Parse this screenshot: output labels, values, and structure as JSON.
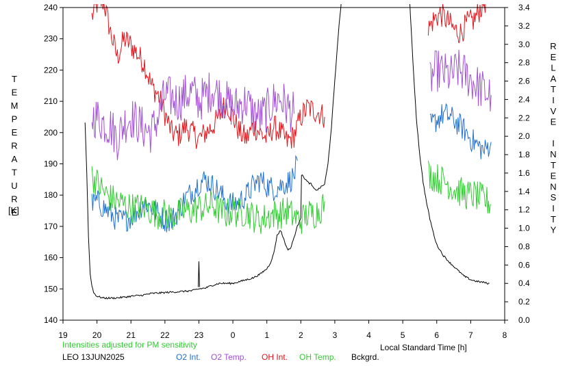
{
  "chart_data": {
    "type": "line",
    "ylabel_left": "TEMPERATURE",
    "ylabel_left_unit": "[K]",
    "ylabel_right": "RELATIVE INTENSITY",
    "xlabel": "Local Standard Time [h]",
    "note": "Intensities adjusted for PM sensitivity",
    "station_date": "LEO 13JUN2025",
    "x_range": [
      19,
      32
    ],
    "x_tick_values": [
      19,
      20,
      21,
      22,
      23,
      24,
      25,
      26,
      27,
      28,
      29,
      30,
      31,
      32
    ],
    "x_tick_labels": [
      "19",
      "20",
      "21",
      "22",
      "23",
      "0",
      "1",
      "2",
      "3",
      "4",
      "5",
      "6",
      "7",
      "8"
    ],
    "y_left_range": [
      140,
      240
    ],
    "y_left_ticks": [
      "140",
      "150",
      "160",
      "170",
      "180",
      "190",
      "200",
      "210",
      "220",
      "230",
      "240"
    ],
    "y_right_range": [
      0.0,
      3.4
    ],
    "y_right_ticks": [
      "0.0",
      "0.2",
      "0.4",
      "0.6",
      "0.8",
      "1.0",
      "1.2",
      "1.4",
      "1.6",
      "1.8",
      "2.0",
      "2.2",
      "2.4",
      "2.6",
      "2.8",
      "3.0",
      "3.2",
      "3.4"
    ],
    "legend": [
      {
        "name": "O2 Int.",
        "color": "#1f6fd0"
      },
      {
        "name": "O2 Temp.",
        "color": "#a14fd6"
      },
      {
        "name": "OH Int.",
        "color": "#e0141a"
      },
      {
        "name": "OH Temp.",
        "color": "#2ecc2e"
      },
      {
        "name": "Bckgrd.",
        "color": "#000000"
      }
    ],
    "note_color": "#2ecc2e",
    "series": [
      {
        "key": "oh_int",
        "axis": "left",
        "color": "#e0141a",
        "noise": 4,
        "segments": [
          [
            [
              19.85,
              237
            ],
            [
              20.0,
              241
            ],
            [
              20.2,
              242
            ],
            [
              20.4,
              232
            ],
            [
              20.6,
              224
            ],
            [
              20.8,
              230
            ],
            [
              21.0,
              228
            ],
            [
              21.2,
              225
            ],
            [
              21.4,
              222
            ],
            [
              21.6,
              215
            ],
            [
              21.8,
              212
            ],
            [
              22.0,
              206
            ],
            [
              22.2,
              200
            ],
            [
              22.4,
              199
            ],
            [
              22.6,
              202
            ],
            [
              22.8,
              200
            ],
            [
              23.0,
              198
            ],
            [
              23.2,
              200
            ],
            [
              23.4,
              202
            ],
            [
              23.6,
              205
            ],
            [
              23.8,
              210
            ],
            [
              24.0,
              205
            ],
            [
              24.2,
              200
            ],
            [
              24.4,
              198
            ],
            [
              24.6,
              202
            ],
            [
              24.8,
              200
            ],
            [
              25.0,
              198
            ],
            [
              25.2,
              202
            ],
            [
              25.4,
              200
            ],
            [
              25.6,
              197
            ],
            [
              25.8,
              199
            ],
            [
              26.0,
              205
            ],
            [
              26.2,
              208
            ],
            [
              26.4,
              207
            ],
            [
              26.6,
              206
            ],
            [
              26.7,
              205
            ]
          ],
          [
            [
              29.75,
              233
            ],
            [
              29.9,
              236
            ],
            [
              30.1,
              238
            ],
            [
              30.3,
              236
            ],
            [
              30.5,
              233
            ],
            [
              30.7,
              232
            ],
            [
              30.9,
              235
            ],
            [
              31.1,
              236
            ],
            [
              31.3,
              240
            ],
            [
              31.5,
              243
            ],
            [
              31.6,
              245
            ]
          ]
        ]
      },
      {
        "key": "o2_temp",
        "axis": "left",
        "color": "#a14fd6",
        "noise": 7,
        "segments": [
          [
            [
              19.85,
              205
            ],
            [
              20.0,
              205
            ],
            [
              20.2,
              203
            ],
            [
              20.4,
              202
            ],
            [
              20.6,
              198
            ],
            [
              20.8,
              203
            ],
            [
              21.0,
              205
            ],
            [
              21.2,
              203
            ],
            [
              21.4,
              201
            ],
            [
              21.6,
              200
            ],
            [
              21.8,
              205
            ],
            [
              22.0,
              212
            ],
            [
              22.2,
              211
            ],
            [
              22.4,
              210
            ],
            [
              22.6,
              212
            ],
            [
              22.8,
              213
            ],
            [
              23.0,
              210
            ],
            [
              23.2,
              212
            ],
            [
              23.4,
              214
            ],
            [
              23.6,
              212
            ],
            [
              23.8,
              210
            ],
            [
              24.0,
              208
            ],
            [
              24.2,
              209
            ],
            [
              24.4,
              210
            ],
            [
              24.6,
              206
            ],
            [
              24.8,
              205
            ],
            [
              25.0,
              207
            ],
            [
              25.2,
              210
            ],
            [
              25.4,
              211
            ],
            [
              25.6,
              208
            ],
            [
              25.8,
              206
            ]
          ],
          [
            [
              29.8,
              217
            ],
            [
              30.0,
              220
            ],
            [
              30.2,
              219
            ],
            [
              30.4,
              218
            ],
            [
              30.6,
              220
            ],
            [
              30.8,
              219
            ],
            [
              31.0,
              217
            ],
            [
              31.2,
              215
            ],
            [
              31.4,
              213
            ],
            [
              31.6,
              212
            ]
          ]
        ]
      },
      {
        "key": "o2_int",
        "axis": "left",
        "color": "#1f6fd0",
        "noise": 4,
        "segments": [
          [
            [
              19.85,
              177
            ],
            [
              20.0,
              178
            ],
            [
              20.2,
              176
            ],
            [
              20.4,
              174
            ],
            [
              20.6,
              172
            ],
            [
              20.8,
              172
            ],
            [
              21.0,
              173
            ],
            [
              21.2,
              175
            ],
            [
              21.4,
              178
            ],
            [
              21.6,
              176
            ],
            [
              21.8,
              174
            ],
            [
              22.0,
              172
            ],
            [
              22.2,
              172
            ],
            [
              22.4,
              175
            ],
            [
              22.6,
              179
            ],
            [
              22.8,
              181
            ],
            [
              23.0,
              184
            ],
            [
              23.2,
              185
            ],
            [
              23.4,
              183
            ],
            [
              23.6,
              181
            ],
            [
              23.8,
              178
            ],
            [
              24.0,
              177
            ],
            [
              24.2,
              178
            ],
            [
              24.4,
              180
            ],
            [
              24.6,
              183
            ],
            [
              24.8,
              185
            ],
            [
              25.0,
              183
            ],
            [
              25.2,
              182
            ],
            [
              25.4,
              183
            ],
            [
              25.6,
              184
            ],
            [
              25.8,
              186
            ],
            [
              25.9,
              191
            ]
          ],
          [
            [
              29.8,
              202
            ],
            [
              30.0,
              204
            ],
            [
              30.2,
              206
            ],
            [
              30.4,
              205
            ],
            [
              30.6,
              203
            ],
            [
              30.8,
              201
            ],
            [
              31.0,
              198
            ],
            [
              31.2,
              196
            ],
            [
              31.4,
              194
            ],
            [
              31.6,
              197
            ]
          ]
        ]
      },
      {
        "key": "oh_temp",
        "axis": "left",
        "color": "#2ecc2e",
        "noise": 5,
        "segments": [
          [
            [
              19.85,
              186
            ],
            [
              20.0,
              184
            ],
            [
              20.2,
              181
            ],
            [
              20.4,
              179
            ],
            [
              20.6,
              178
            ],
            [
              20.8,
              177
            ],
            [
              21.0,
              176
            ],
            [
              21.2,
              176
            ],
            [
              21.4,
              176
            ],
            [
              21.6,
              175
            ],
            [
              21.8,
              174
            ],
            [
              22.0,
              174
            ],
            [
              22.2,
              173
            ],
            [
              22.4,
              174
            ],
            [
              22.6,
              175
            ],
            [
              22.8,
              175
            ],
            [
              23.0,
              176
            ],
            [
              23.2,
              176
            ],
            [
              23.4,
              177
            ],
            [
              23.6,
              175
            ],
            [
              23.8,
              174
            ],
            [
              24.0,
              175
            ],
            [
              24.2,
              174
            ],
            [
              24.4,
              175
            ],
            [
              24.6,
              173
            ],
            [
              24.8,
              172
            ],
            [
              25.0,
              173
            ],
            [
              25.2,
              174
            ],
            [
              25.4,
              174
            ],
            [
              25.6,
              175
            ],
            [
              25.8,
              173
            ],
            [
              26.0,
              172
            ],
            [
              26.2,
              174
            ],
            [
              26.4,
              174
            ],
            [
              26.6,
              176
            ],
            [
              26.7,
              178
            ]
          ],
          [
            [
              29.75,
              187
            ],
            [
              29.9,
              186
            ],
            [
              30.1,
              185
            ],
            [
              30.3,
              184
            ],
            [
              30.5,
              182
            ],
            [
              30.7,
              181
            ],
            [
              30.9,
              180
            ],
            [
              31.1,
              180
            ],
            [
              31.3,
              179
            ],
            [
              31.5,
              178
            ],
            [
              31.6,
              177
            ]
          ]
        ]
      },
      {
        "key": "bckgrd",
        "axis": "right",
        "color": "#000000",
        "noise": 0.01,
        "segments": [
          [
            [
              19.65,
              2.15
            ],
            [
              19.7,
              1.6
            ],
            [
              19.75,
              0.9
            ],
            [
              19.8,
              0.5
            ],
            [
              19.85,
              0.38
            ],
            [
              19.9,
              0.3
            ],
            [
              20.0,
              0.26
            ],
            [
              20.2,
              0.24
            ],
            [
              20.5,
              0.24
            ],
            [
              20.8,
              0.25
            ],
            [
              21.0,
              0.26
            ],
            [
              21.3,
              0.27
            ],
            [
              21.6,
              0.29
            ],
            [
              22.0,
              0.3
            ],
            [
              22.4,
              0.31
            ],
            [
              22.8,
              0.32
            ],
            [
              23.0,
              0.34
            ],
            [
              23.2,
              0.35
            ],
            [
              23.4,
              0.38
            ],
            [
              23.6,
              0.4
            ],
            [
              23.8,
              0.4
            ],
            [
              24.0,
              0.4
            ],
            [
              24.2,
              0.42
            ],
            [
              24.4,
              0.44
            ],
            [
              24.6,
              0.46
            ],
            [
              24.8,
              0.5
            ],
            [
              25.0,
              0.56
            ],
            [
              25.1,
              0.62
            ],
            [
              25.2,
              0.72
            ],
            [
              25.3,
              0.92
            ],
            [
              25.4,
              0.98
            ],
            [
              25.5,
              0.88
            ],
            [
              25.6,
              0.77
            ],
            [
              25.7,
              0.78
            ],
            [
              25.8,
              0.9
            ],
            [
              25.9,
              1.02
            ],
            [
              26.0,
              1.12
            ],
            [
              26.02,
              1.58
            ],
            [
              26.1,
              1.55
            ],
            [
              26.2,
              1.5
            ],
            [
              26.3,
              1.48
            ],
            [
              26.4,
              1.42
            ],
            [
              26.5,
              1.42
            ],
            [
              26.6,
              1.45
            ],
            [
              26.7,
              1.48
            ],
            [
              26.8,
              1.7
            ],
            [
              26.9,
              2.1
            ],
            [
              27.0,
              2.6
            ],
            [
              27.1,
              3.1
            ],
            [
              27.2,
              3.5
            ]
          ],
          [
            [
              29.2,
              3.5
            ],
            [
              29.3,
              2.8
            ],
            [
              29.4,
              2.2
            ],
            [
              29.5,
              1.8
            ],
            [
              29.6,
              1.5
            ],
            [
              29.7,
              1.28
            ],
            [
              29.8,
              1.1
            ],
            [
              29.9,
              0.95
            ],
            [
              30.0,
              0.82
            ],
            [
              30.2,
              0.7
            ],
            [
              30.4,
              0.62
            ],
            [
              30.6,
              0.55
            ],
            [
              30.8,
              0.48
            ],
            [
              31.0,
              0.44
            ],
            [
              31.2,
              0.42
            ],
            [
              31.4,
              0.41
            ],
            [
              31.5,
              0.4
            ],
            [
              31.55,
              0.4
            ]
          ]
        ]
      }
    ],
    "spikes": [
      {
        "key": "bckgrd",
        "axis": "right",
        "x": 23.0,
        "base": 0.36,
        "peak": 0.64
      }
    ]
  }
}
